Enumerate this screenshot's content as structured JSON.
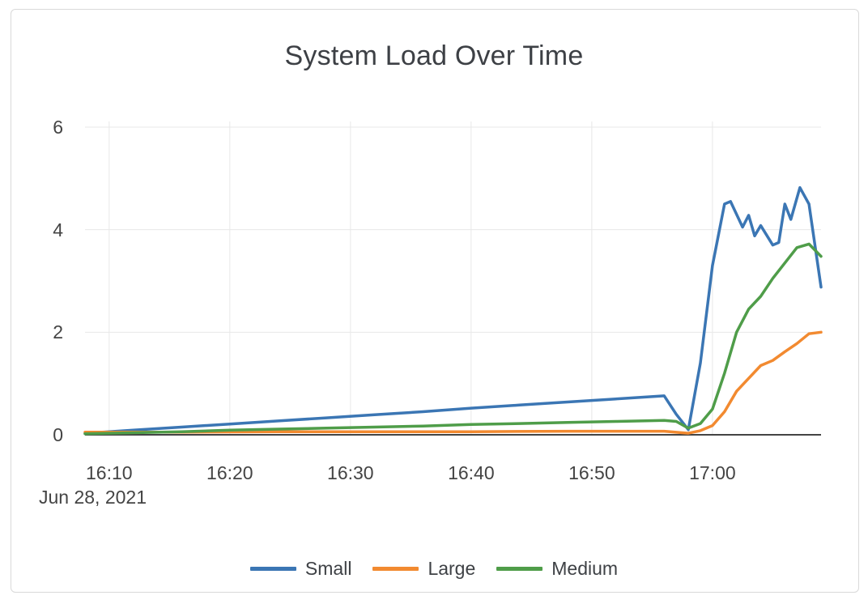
{
  "chart": {
    "colors": {
      "grid": "#e8e8e8",
      "zero_line": "#444444",
      "text": "#444444",
      "title_text": "#3d4045",
      "card_border": "#d9d9d9",
      "background": "#ffffff"
    }
  },
  "chart_data": {
    "type": "line",
    "title": "System Load Over Time",
    "xlabel": "",
    "ylabel": "",
    "grid": true,
    "legend_position": "bottom",
    "x_axis": {
      "date": "Jun 28, 2021",
      "start": "16:08",
      "end": "17:09",
      "ticks": [
        "16:10",
        "16:20",
        "16:30",
        "16:40",
        "16:50",
        "17:00"
      ]
    },
    "y_axis": {
      "ticks": [
        0,
        2,
        4,
        6
      ],
      "range": [
        0,
        6.1
      ]
    },
    "series": [
      {
        "name": "Small",
        "color": "#3b76b4",
        "points": [
          [
            "16:08",
            0.03
          ],
          [
            "16:12",
            0.09
          ],
          [
            "16:16",
            0.15
          ],
          [
            "16:20",
            0.21
          ],
          [
            "16:24",
            0.27
          ],
          [
            "16:28",
            0.33
          ],
          [
            "16:32",
            0.39
          ],
          [
            "16:36",
            0.45
          ],
          [
            "16:40",
            0.52
          ],
          [
            "16:44",
            0.58
          ],
          [
            "16:48",
            0.64
          ],
          [
            "16:52",
            0.7
          ],
          [
            "16:56",
            0.76
          ],
          [
            "16:57",
            0.4
          ],
          [
            "16:58",
            0.1
          ],
          [
            "16:59",
            1.4
          ],
          [
            "17:00",
            3.3
          ],
          [
            "17:01",
            4.5
          ],
          [
            "17:01:30",
            4.55
          ],
          [
            "17:02:30",
            4.05
          ],
          [
            "17:03",
            4.28
          ],
          [
            "17:03:30",
            3.88
          ],
          [
            "17:04",
            4.08
          ],
          [
            "17:05",
            3.7
          ],
          [
            "17:05:30",
            3.75
          ],
          [
            "17:06",
            4.5
          ],
          [
            "17:06:30",
            4.2
          ],
          [
            "17:07:15",
            4.82
          ],
          [
            "17:08",
            4.5
          ],
          [
            "17:09",
            2.88
          ]
        ]
      },
      {
        "name": "Large",
        "color": "#f28a30",
        "points": [
          [
            "16:08",
            0.05
          ],
          [
            "16:16",
            0.05
          ],
          [
            "16:24",
            0.06
          ],
          [
            "16:32",
            0.06
          ],
          [
            "16:40",
            0.06
          ],
          [
            "16:48",
            0.07
          ],
          [
            "16:56",
            0.07
          ],
          [
            "16:58",
            0.03
          ],
          [
            "16:59",
            0.08
          ],
          [
            "17:00",
            0.18
          ],
          [
            "17:01",
            0.45
          ],
          [
            "17:02",
            0.85
          ],
          [
            "17:03",
            1.1
          ],
          [
            "17:04",
            1.35
          ],
          [
            "17:05",
            1.45
          ],
          [
            "17:06",
            1.62
          ],
          [
            "17:07",
            1.78
          ],
          [
            "17:08",
            1.97
          ],
          [
            "17:09",
            2.0
          ]
        ]
      },
      {
        "name": "Medium",
        "color": "#4f9d49",
        "points": [
          [
            "16:08",
            0.02
          ],
          [
            "16:12",
            0.04
          ],
          [
            "16:16",
            0.06
          ],
          [
            "16:20",
            0.09
          ],
          [
            "16:24",
            0.11
          ],
          [
            "16:28",
            0.13
          ],
          [
            "16:32",
            0.15
          ],
          [
            "16:36",
            0.17
          ],
          [
            "16:40",
            0.2
          ],
          [
            "16:44",
            0.22
          ],
          [
            "16:48",
            0.24
          ],
          [
            "16:52",
            0.26
          ],
          [
            "16:56",
            0.28
          ],
          [
            "16:57",
            0.26
          ],
          [
            "16:58",
            0.13
          ],
          [
            "16:59",
            0.22
          ],
          [
            "17:00",
            0.5
          ],
          [
            "17:01",
            1.2
          ],
          [
            "17:02",
            2.0
          ],
          [
            "17:03",
            2.45
          ],
          [
            "17:04",
            2.7
          ],
          [
            "17:05",
            3.05
          ],
          [
            "17:06",
            3.35
          ],
          [
            "17:07",
            3.65
          ],
          [
            "17:08",
            3.72
          ],
          [
            "17:09",
            3.48
          ]
        ]
      }
    ]
  }
}
